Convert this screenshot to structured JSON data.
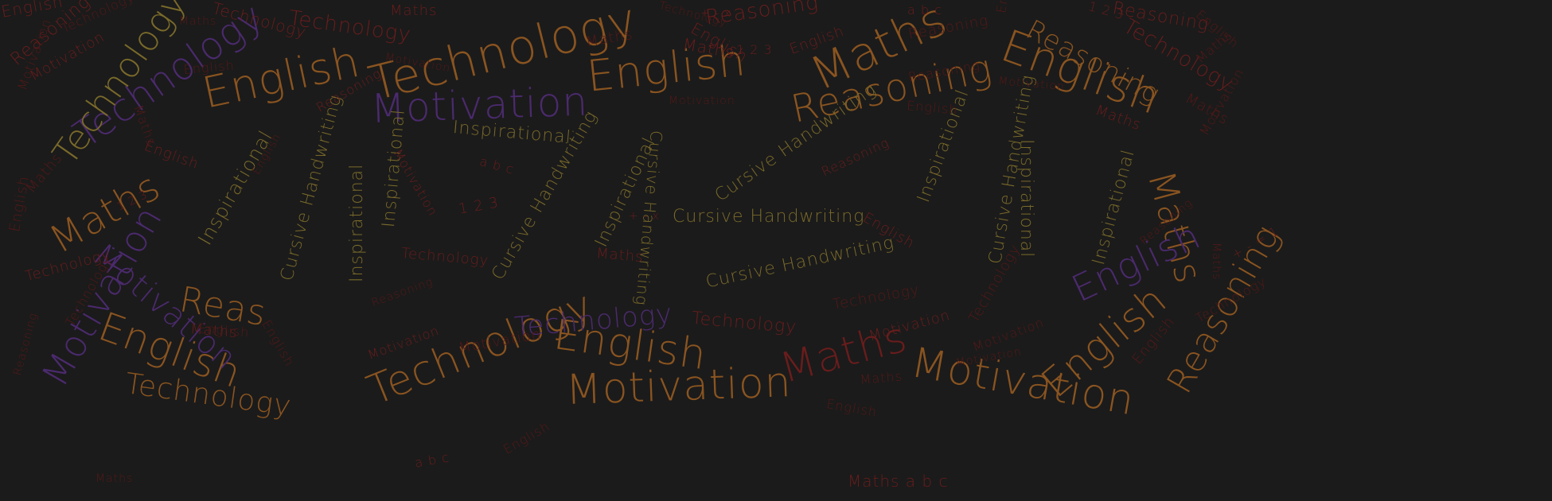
{
  "colors": {
    "background": "#1b1b1b",
    "orange": "#8a5420",
    "gold": "#7a6a2a",
    "red": "#6a1c1c",
    "dark_red": "#561818",
    "purple": "#4b2a6e"
  },
  "words": {
    "w1": "Maths",
    "w2": "Technology",
    "w3": "Technology",
    "w4": "English",
    "w5": "Technology",
    "w6": "Motivation",
    "w7": "Inspirational",
    "w8": "English",
    "w9": "Reasoning",
    "w10": "Maths",
    "w11": "English",
    "w12": "Reasoning",
    "w13": "Maths",
    "w14": "Inspirational",
    "w15": "Cursive Handwriting",
    "w16": "Inspirational",
    "w17": "Inspirational",
    "w18": "Cursive Handwriting",
    "w19": "Inspirational",
    "w20": "Cursive Handwriting",
    "w21": "Cursive Handwriting",
    "w22": "Inspirational",
    "w23": "Cursive Handwriting",
    "w24": "Inspirational",
    "w25": "Inspirational",
    "w26": "Cursive Handwriting",
    "w27": "Technology",
    "w28": "Maths",
    "w29": "Motivation",
    "w30": "Reas",
    "w31": "English",
    "w32": "Technology",
    "w33": "English",
    "w34": "Motivation",
    "w35": "Technology",
    "w36": "Maths",
    "w37": "English",
    "w38": "Motivation",
    "w39": "Reasoning",
    "w40": "Technology",
    "w41": "English",
    "w42": "Reasoning",
    "w43": "Maths",
    "w44": "Technology",
    "w45": "English",
    "w46": "Motivation",
    "w47": "Maths",
    "w48": "English",
    "w49": "Reasoning",
    "w50": "Technology",
    "w51": "Maths",
    "w52": "Reasoning",
    "w53": "Technology",
    "w54": "Reasoning",
    "w55": "English",
    "w56": "Motivation",
    "w57": "Maths",
    "w58": "Technology",
    "w59": "Maths a b c",
    "w60": "Motivation",
    "w61": "English",
    "w62": "Reasoning",
    "w63": "a b c",
    "w64": "1 2 3",
    "w65": "+ - x",
    "w66": "1 2 3",
    "w67": "a b c",
    "w68": "+ - x",
    "w69": "1 2 3",
    "w70": "a b c",
    "w71": "+ - = 1",
    "w72": "1 2 3",
    "w73": "English",
    "w74": "Maths",
    "w75": "Maths",
    "w76": "English",
    "w77": "Technology",
    "w78": "Reasoning",
    "w79": "Motivation",
    "w80": "Maths",
    "w81": "English",
    "w82": "Motivation",
    "w83": "Technology",
    "w84": "Maths",
    "w85": "English",
    "w86": "Technology",
    "w87": "Motivation",
    "w88": "English",
    "w89": "Maths",
    "w90": "Technology",
    "w91": "Reasoning",
    "w92": "English",
    "w93": "Motivation",
    "w94": "Maths",
    "w95": "English",
    "w96": "Reasoning",
    "w97": "Motivation",
    "w98": "English",
    "w99": "Maths",
    "w100": "English",
    "w101": "Reasoning",
    "w102": "English",
    "w103": "Technology",
    "w104": "Maths",
    "w105": "Motivation",
    "w106": "Technology",
    "w107": "Motivation",
    "w108": "Maths",
    "w109": "English",
    "w110": "Motivation",
    "w111": "Reasoning"
  }
}
